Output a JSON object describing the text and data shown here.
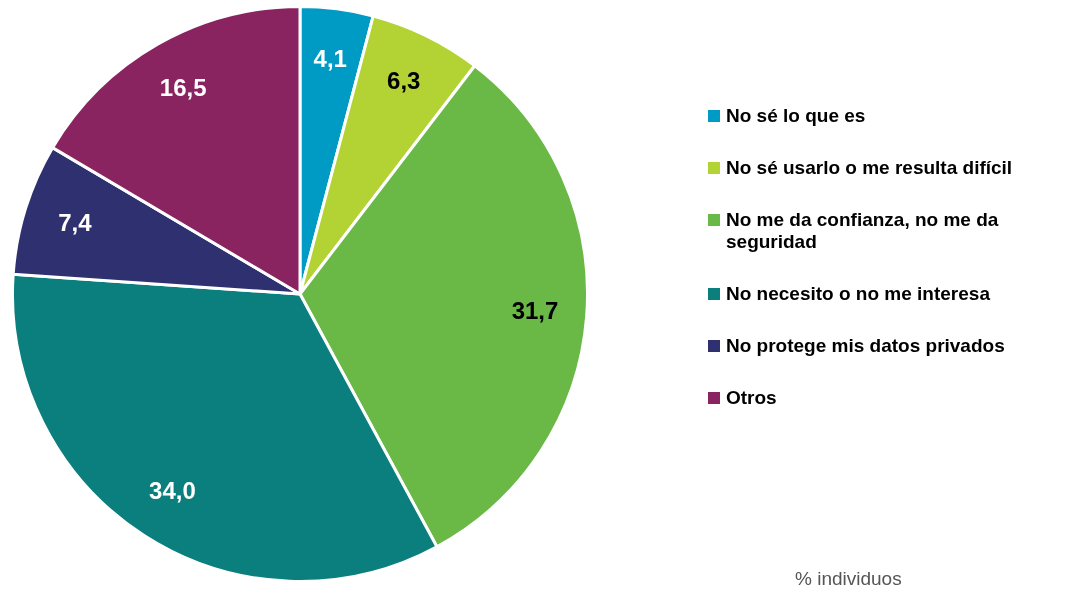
{
  "chart_data": {
    "type": "pie",
    "categories": [
      "No sé lo que es",
      "No sé usarlo o me resulta difícil",
      "No me da confianza, no me da seguridad",
      "No necesito o no me interesa",
      "No protege mis datos privados",
      "Otros"
    ],
    "values": [
      4.1,
      6.3,
      31.7,
      34.0,
      7.4,
      16.5
    ],
    "value_labels": [
      "4,1",
      "6,3",
      "31,7",
      "34,0",
      "7,4",
      "16,5"
    ],
    "colors": [
      "#009bc4",
      "#b3d334",
      "#6ab846",
      "#0b7f7d",
      "#2e3070",
      "#8a2461"
    ],
    "legend": "right",
    "annotations": [
      "% individuos"
    ]
  }
}
